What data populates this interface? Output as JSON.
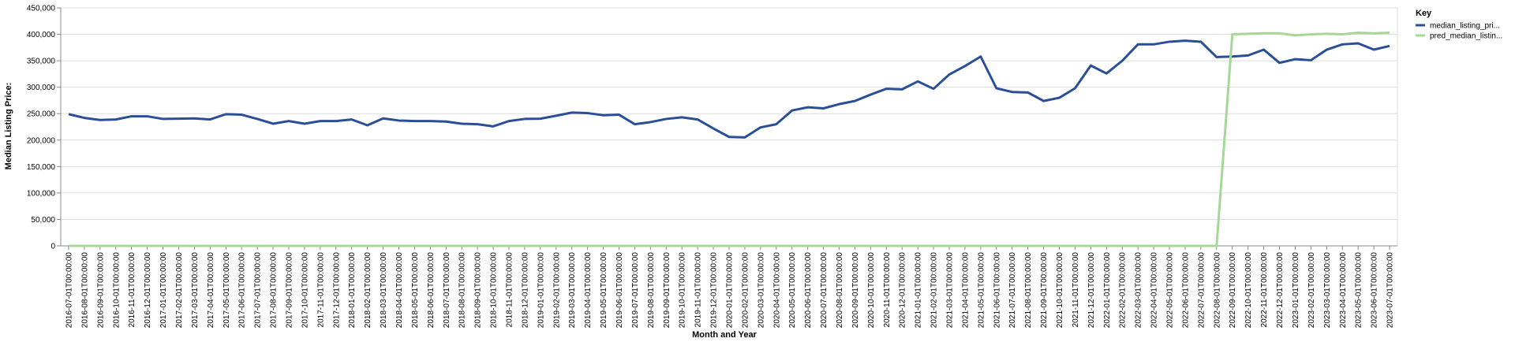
{
  "chart_data": {
    "type": "line",
    "xlabel": "Month and Year",
    "ylabel": "Median Listing Price:",
    "ylim": [
      0,
      450000
    ],
    "yticks": [
      "0",
      "50,000",
      "100,000",
      "150,000",
      "200,000",
      "250,000",
      "300,000",
      "350,000",
      "400,000",
      "450,000"
    ],
    "grid": true,
    "legend": {
      "title": "Key",
      "placement": "right"
    },
    "x": [
      "2016-07-01T00:00:00",
      "2016-08-01T00:00:00",
      "2016-09-01T00:00:00",
      "2016-10-01T00:00:00",
      "2016-11-01T00:00:00",
      "2016-12-01T00:00:00",
      "2017-01-01T00:00:00",
      "2017-02-01T00:00:00",
      "2017-03-01T00:00:00",
      "2017-04-01T00:00:00",
      "2017-05-01T00:00:00",
      "2017-06-01T00:00:00",
      "2017-07-01T00:00:00",
      "2017-08-01T00:00:00",
      "2017-09-01T00:00:00",
      "2017-10-01T00:00:00",
      "2017-11-01T00:00:00",
      "2017-12-01T00:00:00",
      "2018-01-01T00:00:00",
      "2018-02-01T00:00:00",
      "2018-03-01T00:00:00",
      "2018-04-01T00:00:00",
      "2018-05-01T00:00:00",
      "2018-06-01T00:00:00",
      "2018-07-01T00:00:00",
      "2018-08-01T00:00:00",
      "2018-09-01T00:00:00",
      "2018-10-01T00:00:00",
      "2018-11-01T00:00:00",
      "2018-12-01T00:00:00",
      "2019-01-01T00:00:00",
      "2019-02-01T00:00:00",
      "2019-03-01T00:00:00",
      "2019-04-01T00:00:00",
      "2019-05-01T00:00:00",
      "2019-06-01T00:00:00",
      "2019-07-01T00:00:00",
      "2019-08-01T00:00:00",
      "2019-09-01T00:00:00",
      "2019-10-01T00:00:00",
      "2019-11-01T00:00:00",
      "2019-12-01T00:00:00",
      "2020-01-01T00:00:00",
      "2020-02-01T00:00:00",
      "2020-03-01T00:00:00",
      "2020-04-01T00:00:00",
      "2020-05-01T00:00:00",
      "2020-06-01T00:00:00",
      "2020-07-01T00:00:00",
      "2020-08-01T00:00:00",
      "2020-09-01T00:00:00",
      "2020-10-01T00:00:00",
      "2020-11-01T00:00:00",
      "2020-12-01T00:00:00",
      "2021-01-01T00:00:00",
      "2021-02-01T00:00:00",
      "2021-03-01T00:00:00",
      "2021-04-01T00:00:00",
      "2021-05-01T00:00:00",
      "2021-06-01T00:00:00",
      "2021-07-01T00:00:00",
      "2021-08-01T00:00:00",
      "2021-09-01T00:00:00",
      "2021-10-01T00:00:00",
      "2021-11-01T00:00:00",
      "2021-12-01T00:00:00",
      "2022-01-01T00:00:00",
      "2022-02-01T00:00:00",
      "2022-03-01T00:00:00",
      "2022-04-01T00:00:00",
      "2022-05-01T00:00:00",
      "2022-06-01T00:00:00",
      "2022-07-01T00:00:00",
      "2022-08-01T00:00:00",
      "2022-09-01T00:00:00",
      "2022-10-01T00:00:00",
      "2022-11-01T00:00:00",
      "2022-12-01T00:00:00",
      "2023-01-01T00:00:00",
      "2023-02-01T00:00:00",
      "2023-03-01T00:00:00",
      "2023-04-01T00:00:00",
      "2023-05-01T00:00:00",
      "2023-06-01T00:00:00",
      "2023-07-01T00:00:00"
    ],
    "series": [
      {
        "name": "median_listing_pri...",
        "color": "#2a4f97",
        "values": [
          249000,
          242000,
          238000,
          239000,
          245000,
          245000,
          240000,
          240500,
          241000,
          239000,
          249000,
          248000,
          240000,
          231000,
          236000,
          231000,
          236000,
          236000,
          239000,
          228000,
          241000,
          237000,
          236000,
          236000,
          235000,
          231000,
          230000,
          226000,
          236000,
          240000,
          240500,
          246000,
          252000,
          251000,
          247000,
          248000,
          230000,
          234000,
          240000,
          243000,
          239000,
          222000,
          206000,
          205000,
          224000,
          230000,
          256000,
          262000,
          260000,
          268000,
          274000,
          286000,
          297000,
          296000,
          311000,
          297000,
          324000,
          340000,
          358000,
          298000,
          291000,
          290000,
          274000,
          280000,
          298000,
          341000,
          326000,
          350000,
          381000,
          381000,
          386000,
          388000,
          386000,
          357000,
          358000,
          360000,
          371000,
          346000,
          353000,
          351000,
          371000,
          381000,
          383000,
          371000,
          378000
        ]
      },
      {
        "name": "pred_median_listin...",
        "color": "#a5d898",
        "values": [
          0,
          0,
          0,
          0,
          0,
          0,
          0,
          0,
          0,
          0,
          0,
          0,
          0,
          0,
          0,
          0,
          0,
          0,
          0,
          0,
          0,
          0,
          0,
          0,
          0,
          0,
          0,
          0,
          0,
          0,
          0,
          0,
          0,
          0,
          0,
          0,
          0,
          0,
          0,
          0,
          0,
          0,
          0,
          0,
          0,
          0,
          0,
          0,
          0,
          0,
          0,
          0,
          0,
          0,
          0,
          0,
          0,
          0,
          0,
          0,
          0,
          0,
          0,
          0,
          0,
          0,
          0,
          0,
          0,
          0,
          0,
          0,
          0,
          0,
          400000,
          401000,
          402000,
          402000,
          398000,
          400000,
          401000,
          400000,
          403000,
          402000,
          403000
        ]
      }
    ]
  }
}
